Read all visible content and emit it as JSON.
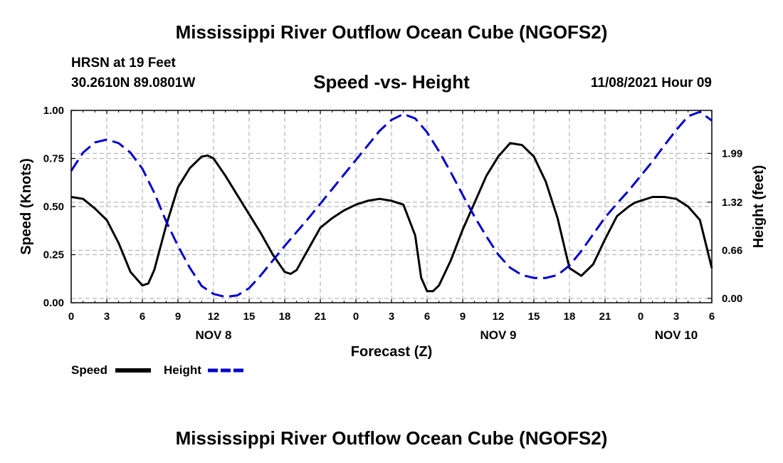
{
  "page": {
    "title": "Mississippi River Outflow Ocean Cube (NGOFS2)",
    "title_repeat": "Mississippi River Outflow Ocean Cube (NGOFS2)",
    "station": "HRSN at 19 Feet",
    "coordinates": "30.2610N  89.0801W",
    "subtitle": "Speed -vs- Height",
    "datetime": "11/08/2021 Hour 09"
  },
  "chart_data": {
    "type": "line",
    "title": "Speed -vs- Height",
    "xlabel": "Forecast (Z)",
    "ylabel": "Speed (Knots)",
    "ylabel_right": "Height (feet)",
    "xlim": [
      0,
      54
    ],
    "ylim": [
      0,
      1
    ],
    "ylim_right": [
      -0.06,
      2.58
    ],
    "grid": true,
    "x_ticks": [
      0,
      3,
      6,
      9,
      12,
      15,
      18,
      21,
      24,
      27,
      30,
      33,
      36,
      39,
      42,
      45,
      48,
      51,
      54
    ],
    "x_tick_labels": [
      "0",
      "3",
      "6",
      "9",
      "12",
      "15",
      "18",
      "21",
      "0",
      "3",
      "6",
      "9",
      "12",
      "15",
      "18",
      "21",
      "0",
      "3",
      "6"
    ],
    "date_labels": [
      {
        "x": 12,
        "label": "NOV 8"
      },
      {
        "x": 36,
        "label": "NOV 9"
      },
      {
        "x": 51,
        "label": "NOV 10"
      }
    ],
    "y_ticks": [
      0.0,
      0.25,
      0.5,
      0.75,
      1.0
    ],
    "y_tick_labels": [
      "0.00",
      "0.25",
      "0.50",
      "0.75",
      "1.00"
    ],
    "y_right_ticks": [
      0.0,
      0.66,
      1.32,
      1.99
    ],
    "y_right_tick_labels": [
      "0.00",
      "0.66",
      "1.32",
      "1.99"
    ],
    "legend": [
      {
        "name": "Speed",
        "color": "#000000",
        "style": "solid"
      },
      {
        "name": "Height",
        "color": "#0000cc",
        "style": "dashed"
      }
    ],
    "series": [
      {
        "name": "Speed",
        "axis": "left",
        "color": "#000000",
        "style": "solid",
        "x": [
          0,
          1,
          2,
          3,
          4,
          5,
          6,
          6.5,
          7,
          8,
          9,
          10,
          11,
          11.5,
          12,
          13,
          14,
          15,
          16,
          17,
          18,
          18.5,
          19,
          20,
          21,
          22,
          23,
          24,
          25,
          26,
          27,
          28,
          29,
          29.5,
          30,
          30.5,
          31,
          32,
          33,
          34,
          35,
          36,
          37,
          38,
          39,
          40,
          41,
          42,
          43,
          44,
          45,
          46,
          47,
          47.5,
          48,
          49,
          50,
          51,
          52,
          53,
          54
        ],
        "y": [
          0.55,
          0.54,
          0.49,
          0.43,
          0.31,
          0.16,
          0.09,
          0.1,
          0.17,
          0.4,
          0.6,
          0.7,
          0.76,
          0.765,
          0.75,
          0.66,
          0.56,
          0.46,
          0.36,
          0.25,
          0.16,
          0.15,
          0.17,
          0.28,
          0.39,
          0.44,
          0.48,
          0.51,
          0.53,
          0.54,
          0.53,
          0.51,
          0.35,
          0.13,
          0.06,
          0.06,
          0.09,
          0.22,
          0.38,
          0.52,
          0.66,
          0.76,
          0.83,
          0.82,
          0.76,
          0.63,
          0.44,
          0.18,
          0.14,
          0.2,
          0.33,
          0.45,
          0.5,
          0.52,
          0.53,
          0.55,
          0.55,
          0.54,
          0.5,
          0.43,
          0.18
        ]
      },
      {
        "name": "Height",
        "axis": "right",
        "color": "#0000cc",
        "style": "dashed",
        "x": [
          0,
          1,
          2,
          3,
          4,
          5,
          6,
          7,
          8,
          9,
          10,
          11,
          12,
          13,
          14,
          15,
          16,
          17,
          18,
          19,
          20,
          21,
          22,
          23,
          24,
          25,
          26,
          27,
          28,
          29,
          30,
          31,
          32,
          33,
          34,
          35,
          36,
          37,
          38,
          39,
          40,
          41,
          42,
          43,
          44,
          45,
          46,
          47,
          48,
          49,
          50,
          51,
          52,
          53,
          54
        ],
        "y": [
          1.75,
          2.0,
          2.14,
          2.18,
          2.13,
          2.0,
          1.78,
          1.45,
          1.06,
          0.72,
          0.42,
          0.17,
          0.06,
          0.02,
          0.04,
          0.14,
          0.32,
          0.52,
          0.72,
          0.91,
          1.1,
          1.3,
          1.5,
          1.7,
          1.9,
          2.1,
          2.3,
          2.45,
          2.53,
          2.47,
          2.28,
          2.02,
          1.73,
          1.42,
          1.12,
          0.85,
          0.6,
          0.42,
          0.32,
          0.28,
          0.28,
          0.32,
          0.45,
          0.65,
          0.88,
          1.11,
          1.3,
          1.48,
          1.68,
          1.88,
          2.1,
          2.31,
          2.5,
          2.56,
          2.44
        ]
      }
    ]
  }
}
